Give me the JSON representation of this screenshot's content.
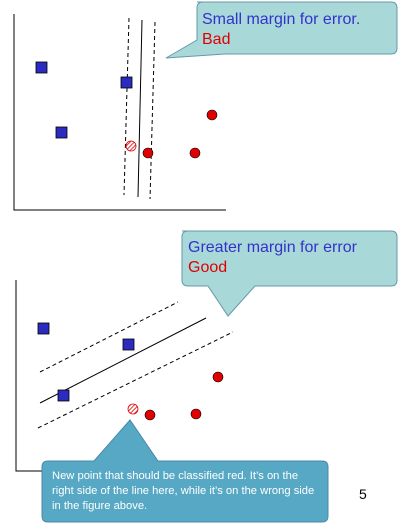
{
  "colors": {
    "bubble_fill": "#a8d8d8",
    "bubble_stroke": "#6699aa",
    "bottom_bubble_fill": "#57a8c4",
    "square_fill": "#2b2bbf",
    "circle_fill": "#e00000",
    "text_blue": "#3333cc",
    "text_red": "#e00000"
  },
  "top_callout": {
    "line1": "Small margin for error.",
    "line2": "Bad"
  },
  "mid_callout": {
    "line1": "Greater margin for error",
    "line2": "Good"
  },
  "bottom_callout": {
    "text": "New point that should be classified red. It’s on the right side of the line here, while it’s on the wrong side in the figure above."
  },
  "page_number": "5"
}
